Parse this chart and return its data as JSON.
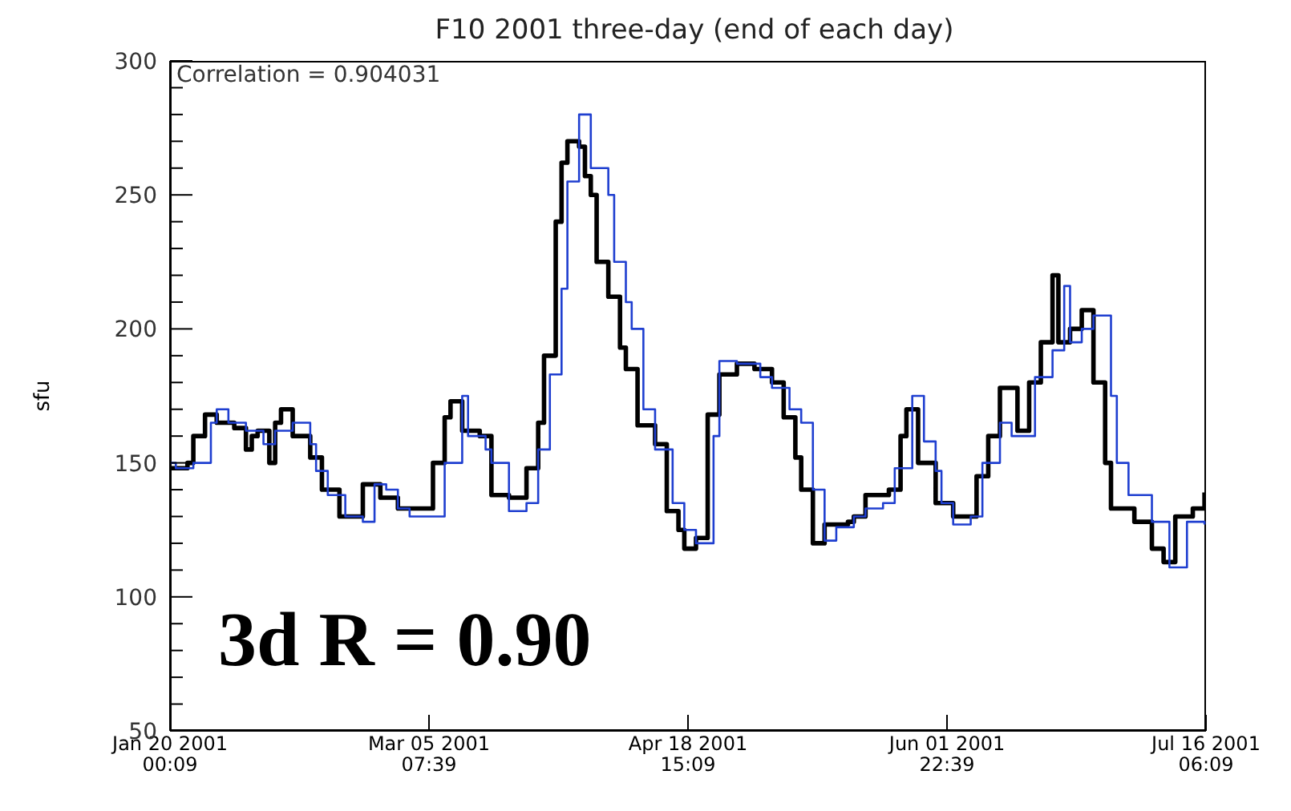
{
  "chart_data": {
    "type": "step",
    "title": "F10 2001 three-day (end of each day)",
    "ylabel": "sfu",
    "annotations": [
      "Correlation = 0.904031",
      "3d R = 0.90"
    ],
    "xlim": [
      "2001-01-20T00:09",
      "2001-07-16T06:09"
    ],
    "xticks": [
      {
        "value": "2001-01-20T00:09",
        "label": "Jan 20 2001\n00:09"
      },
      {
        "value": "2001-03-05T07:39",
        "label": "Mar 05 2001\n07:39"
      },
      {
        "value": "2001-04-18T15:09",
        "label": "Apr 18 2001\n15:09"
      },
      {
        "value": "2001-06-01T22:39",
        "label": "Jun 01 2001\n22:39"
      },
      {
        "value": "2001-07-16T06:09",
        "label": "Jul 16 2001\n06:09"
      }
    ],
    "ylim": [
      50,
      300
    ],
    "yticks": [
      50,
      {
        "value": 60,
        "label": null
      },
      {
        "value": 70,
        "label": null
      },
      {
        "value": 80,
        "label": null
      },
      {
        "value": 90,
        "label": null
      },
      100,
      {
        "value": 110,
        "label": null
      },
      {
        "value": 120,
        "label": null
      },
      {
        "value": 130,
        "label": null
      },
      {
        "value": 140,
        "label": null
      },
      150,
      {
        "value": 160,
        "label": null
      },
      {
        "value": 170,
        "label": null
      },
      {
        "value": 180,
        "label": null
      },
      {
        "value": 190,
        "label": null
      },
      200,
      {
        "value": 210,
        "label": null
      },
      {
        "value": 220,
        "label": null
      },
      {
        "value": 230,
        "label": null
      },
      {
        "value": 240,
        "label": null
      },
      250,
      {
        "value": 260,
        "label": null
      },
      {
        "value": 270,
        "label": null
      },
      {
        "value": 280,
        "label": null
      },
      {
        "value": 290,
        "label": null
      },
      300
    ],
    "series": [
      {
        "color": "#000000",
        "x": [
          "2001-01-20T00:09",
          "2001-01-23",
          "2001-01-24",
          "2001-01-26",
          "2001-01-28",
          "2001-01-31",
          "2001-02-02",
          "2001-02-03",
          "2001-02-04",
          "2001-02-06",
          "2001-02-07",
          "2001-02-08",
          "2001-02-10",
          "2001-02-13",
          "2001-02-15",
          "2001-02-18",
          "2001-02-20",
          "2001-02-22",
          "2001-02-23",
          "2001-02-25",
          "2001-02-28",
          "2001-03-04",
          "2001-03-06",
          "2001-03-08",
          "2001-03-09",
          "2001-03-11",
          "2001-03-14",
          "2001-03-16",
          "2001-03-19",
          "2001-03-22",
          "2001-03-24",
          "2001-03-25",
          "2001-03-27",
          "2001-03-28",
          "2001-03-29",
          "2001-03-31",
          "2001-04-01",
          "2001-04-02",
          "2001-04-03",
          "2001-04-05",
          "2001-04-07",
          "2001-04-08",
          "2001-04-10",
          "2001-04-13",
          "2001-04-15",
          "2001-04-17",
          "2001-04-18",
          "2001-04-20",
          "2001-04-22",
          "2001-04-24",
          "2001-04-27",
          "2001-04-30",
          "2001-05-03",
          "2001-05-05",
          "2001-05-07",
          "2001-05-08",
          "2001-05-10",
          "2001-05-12",
          "2001-05-16",
          "2001-05-17",
          "2001-05-19",
          "2001-05-23",
          "2001-05-25",
          "2001-05-26",
          "2001-05-28",
          "2001-05-31",
          "2001-06-03",
          "2001-06-05",
          "2001-06-07",
          "2001-06-09",
          "2001-06-11",
          "2001-06-14",
          "2001-06-16",
          "2001-06-18",
          "2001-06-20",
          "2001-06-21",
          "2001-06-23",
          "2001-06-25",
          "2001-06-27",
          "2001-06-29",
          "2001-06-30",
          "2001-07-04",
          "2001-07-07",
          "2001-07-09",
          "2001-07-11",
          "2001-07-14",
          "2001-07-16T00:00"
        ],
        "values": [
          148,
          150,
          160,
          168,
          165,
          163,
          155,
          160,
          162,
          150,
          165,
          170,
          160,
          152,
          140,
          130,
          130,
          142,
          142,
          137,
          133,
          133,
          150,
          167,
          173,
          162,
          160,
          138,
          137,
          148,
          165,
          190,
          240,
          262,
          270,
          268,
          257,
          250,
          225,
          212,
          193,
          185,
          164,
          157,
          132,
          125,
          118,
          122,
          168,
          183,
          187,
          185,
          180,
          167,
          152,
          140,
          120,
          127,
          128,
          130,
          138,
          140,
          160,
          170,
          150,
          135,
          130,
          130,
          145,
          160,
          178,
          162,
          180,
          195,
          220,
          195,
          200,
          207,
          180,
          150,
          133,
          128,
          118,
          113,
          130,
          133,
          139
        ]
      },
      {
        "color": "#1f3fd0",
        "x": [
          "2001-01-20T00:09",
          "2001-01-21",
          "2001-01-24",
          "2001-01-27",
          "2001-01-28",
          "2001-01-30",
          "2001-02-02",
          "2001-02-05",
          "2001-02-07",
          "2001-02-10",
          "2001-02-13",
          "2001-02-14",
          "2001-02-16",
          "2001-02-19",
          "2001-02-22",
          "2001-02-24",
          "2001-02-26",
          "2001-02-28",
          "2001-03-02",
          "2001-03-06",
          "2001-03-08",
          "2001-03-11",
          "2001-03-12",
          "2001-03-15",
          "2001-03-16",
          "2001-03-19",
          "2001-03-22",
          "2001-03-24",
          "2001-03-26",
          "2001-03-28",
          "2001-03-29",
          "2001-03-31",
          "2001-04-02",
          "2001-04-03",
          "2001-04-05",
          "2001-04-06",
          "2001-04-08",
          "2001-04-09",
          "2001-04-11",
          "2001-04-13",
          "2001-04-16",
          "2001-04-18",
          "2001-04-20",
          "2001-04-23",
          "2001-04-24",
          "2001-04-27",
          "2001-05-01",
          "2001-05-03",
          "2001-05-06",
          "2001-05-08",
          "2001-05-10",
          "2001-05-12",
          "2001-05-14",
          "2001-05-17",
          "2001-05-19",
          "2001-05-22",
          "2001-05-24",
          "2001-05-27",
          "2001-05-29",
          "2001-05-31",
          "2001-06-01",
          "2001-06-03",
          "2001-06-06",
          "2001-06-08",
          "2001-06-11",
          "2001-06-13",
          "2001-06-15",
          "2001-06-17",
          "2001-06-20",
          "2001-06-22",
          "2001-06-23",
          "2001-06-25",
          "2001-06-27",
          "2001-06-30",
          "2001-07-01",
          "2001-07-03",
          "2001-07-07",
          "2001-07-10",
          "2001-07-13",
          "2001-07-16T00:00"
        ],
        "values": [
          150,
          148,
          150,
          165,
          170,
          165,
          162,
          157,
          162,
          165,
          157,
          147,
          138,
          130,
          128,
          142,
          140,
          133,
          130,
          130,
          150,
          175,
          160,
          155,
          150,
          132,
          135,
          155,
          183,
          215,
          255,
          280,
          260,
          260,
          250,
          225,
          210,
          200,
          170,
          155,
          135,
          125,
          120,
          160,
          188,
          187,
          182,
          178,
          170,
          165,
          140,
          121,
          126,
          130,
          133,
          135,
          148,
          175,
          158,
          147,
          135,
          127,
          130,
          150,
          165,
          160,
          160,
          182,
          192,
          216,
          195,
          200,
          205,
          175,
          150,
          138,
          128,
          111,
          128,
          127
        ]
      }
    ]
  }
}
